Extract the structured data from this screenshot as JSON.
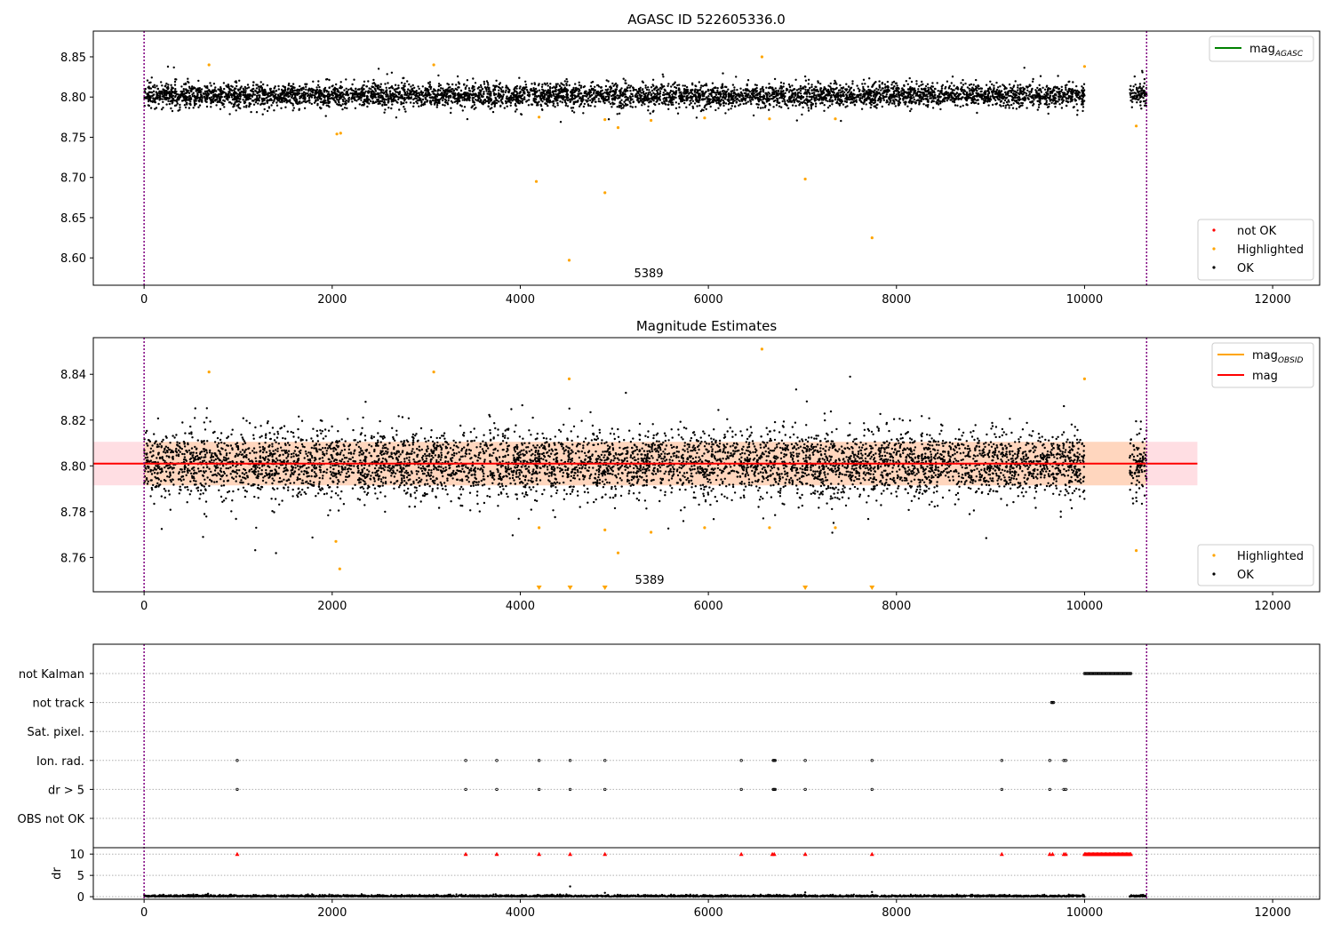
{
  "colors": {
    "ok": "#000000",
    "highlighted": "#ffa500",
    "not_ok": "#ff0000",
    "mag_agasc_line": "#008000",
    "mag_obsid_line": "#ffa500",
    "mag_line": "#ff0000",
    "vline": "#800080",
    "band_red": "#ffb6c1",
    "band_orange": "#ffd0a0",
    "grid": "#b0b0b0"
  },
  "chart_data": [
    {
      "type": "scatter",
      "title": "AGASC ID 522605336.0",
      "xlim": [
        -540,
        12500
      ],
      "ylim": [
        8.566,
        8.882
      ],
      "xticks": [
        0,
        2000,
        4000,
        6000,
        8000,
        10000,
        12000
      ],
      "yticks": [
        8.6,
        8.65,
        8.7,
        8.75,
        8.8,
        8.85
      ],
      "ytick_labels": [
        "8.60",
        "8.65",
        "8.70",
        "8.75",
        "8.80",
        "8.85"
      ],
      "vlines": [
        0,
        10660
      ],
      "annotation": {
        "text": "5389",
        "x": 5389,
        "y": 8.578
      },
      "series": [
        {
          "name": "not OK",
          "role": "not_ok",
          "points": []
        },
        {
          "name": "Highlighted",
          "role": "highlighted",
          "points": [
            [
              4170,
              8.695
            ],
            [
              4520,
              8.597
            ],
            [
              4900,
              8.681
            ],
            [
              7030,
              8.698
            ],
            [
              7740,
              8.625
            ],
            [
              2050,
              8.754
            ],
            [
              2090,
              8.755
            ],
            [
              4200,
              8.775
            ],
            [
              4900,
              8.772
            ],
            [
              5040,
              8.762
            ],
            [
              5390,
              8.771
            ],
            [
              5960,
              8.774
            ],
            [
              6650,
              8.773
            ],
            [
              7350,
              8.773
            ],
            [
              10550,
              8.764
            ],
            [
              6570,
              8.85
            ],
            [
              690,
              8.84
            ],
            [
              3080,
              8.84
            ],
            [
              10000,
              8.838
            ]
          ]
        },
        {
          "name": "OK",
          "role": "ok",
          "center": 8.802,
          "spread": 0.022,
          "x_segments": [
            [
              0,
              10000
            ],
            [
              10480,
              10660
            ]
          ]
        }
      ],
      "legend_lines": [
        {
          "label": "mag",
          "subscript": "AGASC",
          "role": "mag_agasc_line"
        }
      ],
      "legend_points": [
        "not OK",
        "Highlighted",
        "OK"
      ]
    },
    {
      "type": "scatter",
      "title": "Magnitude Estimates",
      "xlim": [
        -540,
        12500
      ],
      "ylim": [
        8.745,
        8.856
      ],
      "xticks": [
        0,
        2000,
        4000,
        6000,
        8000,
        10000,
        12000
      ],
      "yticks": [
        8.76,
        8.78,
        8.8,
        8.82,
        8.84
      ],
      "ytick_labels": [
        "8.76",
        "8.78",
        "8.80",
        "8.82",
        "8.84"
      ],
      "vlines": [
        0,
        10660
      ],
      "annotation": {
        "text": "5389",
        "x": 5389,
        "y": 8.748
      },
      "mag": 8.801,
      "mag_band": [
        8.7915,
        8.8105
      ],
      "mag_band_xrange": [
        -540,
        11200
      ],
      "obsid_band_xrange": [
        0,
        10660
      ],
      "below_axis_markers": [
        4200,
        4530,
        4900,
        7030,
        7740
      ],
      "series": [
        {
          "name": "Highlighted",
          "role": "highlighted",
          "points": [
            [
              2040,
              8.767
            ],
            [
              2080,
              8.755
            ],
            [
              4200,
              8.773
            ],
            [
              4900,
              8.772
            ],
            [
              5040,
              8.762
            ],
            [
              5390,
              8.771
            ],
            [
              5960,
              8.773
            ],
            [
              6650,
              8.773
            ],
            [
              7350,
              8.773
            ],
            [
              10550,
              8.763
            ],
            [
              6570,
              8.851
            ],
            [
              690,
              8.841
            ],
            [
              3080,
              8.841
            ],
            [
              10000,
              8.838
            ],
            [
              4520,
              8.838
            ]
          ]
        },
        {
          "name": "OK",
          "role": "ok",
          "center": 8.801,
          "spread": 0.022,
          "x_segments": [
            [
              0,
              10000
            ],
            [
              10480,
              10660
            ]
          ]
        }
      ],
      "legend_lines": [
        {
          "label": "mag",
          "subscript": "OBSID",
          "role": "mag_obsid_line"
        },
        {
          "label": "mag",
          "subscript": "",
          "role": "mag_line"
        }
      ],
      "legend_points": [
        "Highlighted",
        "OK"
      ]
    },
    {
      "type": "scatter",
      "title": "",
      "xlim": [
        -540,
        12500
      ],
      "xticks": [
        0,
        2000,
        4000,
        6000,
        8000,
        10000,
        12000
      ],
      "vlines": [
        0,
        10660
      ],
      "flag_rows": [
        "not Kalman",
        "not track",
        "Sat. pixel.",
        "Ion. rad.",
        "dr > 5",
        "OBS not OK"
      ],
      "flags": {
        "not Kalman": {
          "ranges": [
            [
              10000,
              10500
            ]
          ],
          "points": []
        },
        "not track": {
          "ranges": [],
          "points": [
            9650,
            9660,
            9670
          ]
        },
        "Sat. pixel.": {
          "ranges": [],
          "points": []
        },
        "Ion. rad.": {
          "ranges": [],
          "points": [
            990,
            3420,
            3750,
            4200,
            4530,
            4900,
            6350,
            6690,
            6700,
            6710,
            7030,
            7740,
            9120,
            9630,
            9780,
            9800
          ]
        },
        "dr > 5": {
          "ranges": [],
          "points": [
            990,
            3420,
            3750,
            4200,
            4530,
            4900,
            6350,
            6690,
            6700,
            6710,
            7030,
            7740,
            9120,
            9630,
            9780,
            9800
          ]
        },
        "OBS not OK": {
          "ranges": [],
          "points": []
        }
      },
      "dr": {
        "ylabel": "dr",
        "ylim": [
          -0.6,
          11.5
        ],
        "yticks": [
          0,
          5,
          10
        ],
        "ytick_labels": [
          "0",
          "5",
          "10"
        ],
        "x_segments": [
          [
            0,
            10000
          ],
          [
            10480,
            10660
          ]
        ],
        "clipped_markers": [
          990,
          3420,
          3750,
          4200,
          4530,
          4900,
          6350,
          6680,
          6700,
          7030,
          7740,
          9120,
          9630,
          9660,
          9780,
          9800
        ],
        "clipped_range": [
          10000,
          10500
        ],
        "outliers": [
          [
            4530,
            2.4
          ],
          [
            7030,
            1.0
          ],
          [
            4900,
            0.9
          ],
          [
            7740,
            1.1
          ],
          [
            680,
            0.7
          ]
        ]
      }
    }
  ]
}
